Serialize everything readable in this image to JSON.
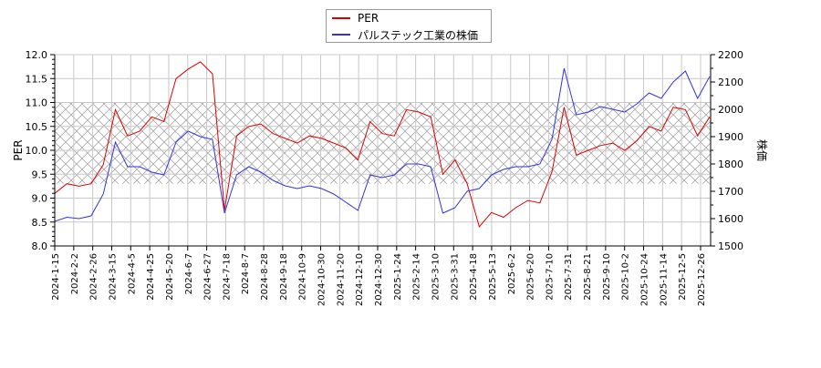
{
  "legend": {
    "items": [
      {
        "label": "PER",
        "color": "#e00000"
      },
      {
        "label": "パルステック工業の株価",
        "color": "#3333dd"
      }
    ]
  },
  "axes": {
    "left_label": "PER",
    "right_label": "株価"
  },
  "chart_data": {
    "type": "line",
    "title": "",
    "xlabel": "",
    "ylabel": "PER",
    "ylabel_right": "株価",
    "ylim": [
      8.0,
      12.0
    ],
    "ylim_right": [
      1500,
      2200
    ],
    "yticks": [
      "8.0",
      "8.5",
      "9.0",
      "9.5",
      "10.0",
      "10.5",
      "11.0",
      "11.5",
      "12.0"
    ],
    "yticks_right": [
      "1500",
      "1600",
      "1700",
      "1800",
      "1900",
      "2000",
      "2100",
      "2200"
    ],
    "grid": true,
    "legend_position": "top-center",
    "shaded_band": {
      "from": 9.3,
      "to": 11.0,
      "pattern": "crosshatch"
    },
    "categories": [
      "2024-1-15",
      "2024-2-2",
      "2024-2-26",
      "2024-3-15",
      "2024-4-5",
      "2024-4-25",
      "2024-5-20",
      "2024-6-7",
      "2024-6-27",
      "2024-7-18",
      "2024-8-7",
      "2024-8-28",
      "2024-9-18",
      "2024-10-9",
      "2024-10-30",
      "2024-11-20",
      "2024-12-10",
      "2024-12-30",
      "2025-1-24",
      "2025-2-14",
      "2025-3-10",
      "2025-3-31",
      "2025-4-18",
      "2025-5-13",
      "2025-6-2",
      "2025-6-20",
      "2025-7-10",
      "2025-7-31",
      "2025-8-21",
      "2025-9-10",
      "2025-10-2",
      "2025-10-24",
      "2025-11-14",
      "2025-12-5",
      "2025-12-26"
    ],
    "series": [
      {
        "name": "PER",
        "axis": "left",
        "color": "#e00000",
        "values": [
          9.1,
          9.3,
          9.25,
          9.3,
          9.7,
          10.85,
          10.3,
          10.4,
          10.7,
          10.6,
          11.5,
          11.7,
          11.85,
          11.6,
          8.75,
          10.3,
          10.5,
          10.55,
          10.35,
          10.25,
          10.15,
          10.3,
          10.25,
          10.15,
          10.05,
          9.8,
          10.6,
          10.35,
          10.3,
          10.85,
          10.8,
          10.7,
          9.5,
          9.8,
          9.3,
          8.4,
          8.7,
          8.6,
          8.8,
          8.95,
          8.9,
          9.55,
          10.9,
          9.9,
          10.0,
          10.1,
          10.15,
          10.0,
          10.2,
          10.5,
          10.4,
          10.9,
          10.85,
          10.3,
          10.7
        ]
      },
      {
        "name": "パルステック工業の株価",
        "axis": "right",
        "color": "#3333dd",
        "values": [
          1590,
          1605,
          1600,
          1610,
          1690,
          1880,
          1790,
          1790,
          1770,
          1760,
          1880,
          1920,
          1900,
          1890,
          1620,
          1760,
          1790,
          1770,
          1740,
          1720,
          1710,
          1720,
          1710,
          1690,
          1660,
          1630,
          1760,
          1750,
          1760,
          1800,
          1800,
          1790,
          1620,
          1640,
          1700,
          1710,
          1760,
          1780,
          1790,
          1790,
          1800,
          1890,
          2150,
          1980,
          1990,
          2010,
          2000,
          1990,
          2020,
          2060,
          2040,
          2100,
          2140,
          2040,
          2120
        ]
      }
    ],
    "x_positions_note": "series values sampled evenly from 2024-1-15 to 2025-12-30"
  }
}
